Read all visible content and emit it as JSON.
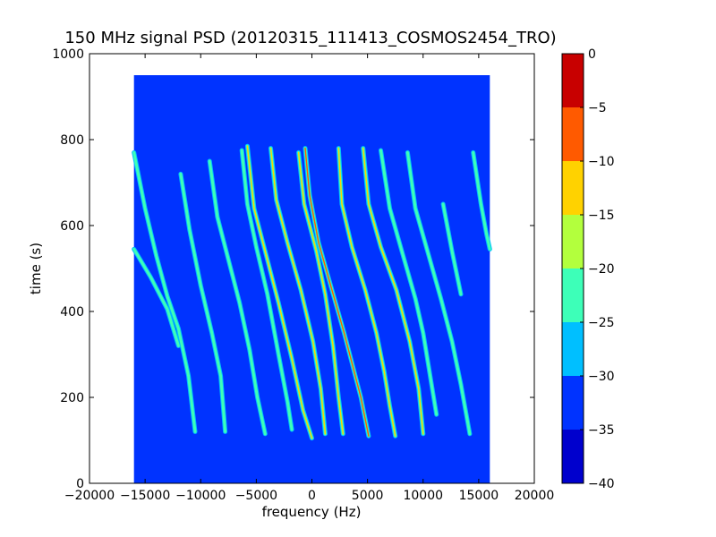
{
  "chart_data": {
    "type": "heatmap",
    "title": "150 MHz signal PSD (20120315_111413_COSMOS2454_TRO)",
    "xlabel": "frequency (Hz)",
    "ylabel": "time (s)",
    "xlim": [
      -20000,
      20000
    ],
    "ylim": [
      0,
      1000
    ],
    "x_ticks": [
      -20000,
      -15000,
      -10000,
      -5000,
      0,
      5000,
      10000,
      15000,
      20000
    ],
    "y_ticks": [
      0,
      200,
      400,
      600,
      800,
      1000
    ],
    "data_extent": {
      "x": [
        -16000,
        16000
      ],
      "y": [
        0,
        950
      ]
    },
    "colorbar": {
      "levels": [
        -40,
        -35,
        -30,
        -25,
        -20,
        -15,
        -10,
        -5,
        0
      ],
      "tick_labels": [
        "−40",
        "−35",
        "−30",
        "−25",
        "−20",
        "−15",
        "−10",
        "−5",
        "0"
      ],
      "colors": [
        "#0000cd",
        "#0033ff",
        "#00bfff",
        "#3dffb8",
        "#b3ff3d",
        "#ffd200",
        "#ff5a00",
        "#c80000"
      ]
    },
    "background_level_db": -32,
    "traces": [
      {
        "peak_db": -22,
        "points": [
          [
            -16000,
            545
          ],
          [
            -14500,
            480
          ],
          [
            -13000,
            405
          ],
          [
            -12000,
            320
          ]
        ]
      },
      {
        "peak_db": -22,
        "points": [
          [
            -16000,
            770
          ],
          [
            -15000,
            640
          ],
          [
            -14000,
            530
          ],
          [
            -13000,
            435
          ],
          [
            -12000,
            360
          ],
          [
            -11100,
            250
          ],
          [
            -10500,
            120
          ]
        ]
      },
      {
        "peak_db": -22,
        "points": [
          [
            -11800,
            720
          ],
          [
            -11000,
            590
          ],
          [
            -10000,
            460
          ],
          [
            -9000,
            350
          ],
          [
            -8200,
            250
          ],
          [
            -7800,
            120
          ]
        ]
      },
      {
        "peak_db": -22,
        "points": [
          [
            -9200,
            750
          ],
          [
            -8500,
            620
          ],
          [
            -7500,
            520
          ],
          [
            -6500,
            420
          ],
          [
            -5600,
            310
          ],
          [
            -4900,
            200
          ],
          [
            -4200,
            115
          ]
        ]
      },
      {
        "peak_db": -22,
        "points": [
          [
            -6300,
            775
          ],
          [
            -5800,
            650
          ],
          [
            -5000,
            550
          ],
          [
            -4000,
            440
          ],
          [
            -3000,
            300
          ],
          [
            -2200,
            190
          ],
          [
            -1800,
            125
          ]
        ]
      },
      {
        "peak_db": -13,
        "points": [
          [
            -5800,
            785
          ],
          [
            -5200,
            640
          ],
          [
            -4200,
            540
          ],
          [
            -3000,
            420
          ],
          [
            -1800,
            290
          ],
          [
            -800,
            170
          ],
          [
            0,
            105
          ]
        ]
      },
      {
        "peak_db": -12,
        "points": [
          [
            -3700,
            780
          ],
          [
            -3200,
            660
          ],
          [
            -2200,
            560
          ],
          [
            -1000,
            450
          ],
          [
            100,
            330
          ],
          [
            800,
            220
          ],
          [
            1200,
            115
          ]
        ]
      },
      {
        "peak_db": -8,
        "points": [
          [
            -600,
            780
          ],
          [
            -200,
            670
          ],
          [
            600,
            560
          ],
          [
            1800,
            450
          ],
          [
            2900,
            350
          ],
          [
            3700,
            270
          ],
          [
            4400,
            200
          ],
          [
            5100,
            110
          ]
        ]
      },
      {
        "peak_db": -12,
        "points": [
          [
            -1200,
            770
          ],
          [
            -700,
            650
          ],
          [
            400,
            540
          ],
          [
            1200,
            440
          ],
          [
            1900,
            320
          ],
          [
            2400,
            200
          ],
          [
            2800,
            115
          ]
        ]
      },
      {
        "peak_db": -12,
        "points": [
          [
            2400,
            780
          ],
          [
            2700,
            650
          ],
          [
            3600,
            550
          ],
          [
            4800,
            450
          ],
          [
            5800,
            350
          ],
          [
            6500,
            260
          ],
          [
            7000,
            180
          ],
          [
            7500,
            110
          ]
        ]
      },
      {
        "peak_db": -13,
        "points": [
          [
            4600,
            780
          ],
          [
            5100,
            650
          ],
          [
            6200,
            550
          ],
          [
            7600,
            450
          ],
          [
            8800,
            330
          ],
          [
            9600,
            220
          ],
          [
            10000,
            115
          ]
        ]
      },
      {
        "peak_db": -20,
        "points": [
          [
            6200,
            775
          ],
          [
            7000,
            640
          ],
          [
            8200,
            530
          ],
          [
            9300,
            430
          ],
          [
            10000,
            350
          ],
          [
            10700,
            240
          ],
          [
            11200,
            160
          ]
        ]
      },
      {
        "peak_db": -22,
        "points": [
          [
            8600,
            770
          ],
          [
            9300,
            640
          ],
          [
            10400,
            540
          ],
          [
            11600,
            430
          ],
          [
            12600,
            330
          ],
          [
            13400,
            230
          ],
          [
            14200,
            115
          ]
        ]
      },
      {
        "peak_db": -22,
        "points": [
          [
            14500,
            770
          ],
          [
            15200,
            650
          ],
          [
            15700,
            580
          ],
          [
            16000,
            545
          ]
        ]
      },
      {
        "peak_db": -22,
        "points": [
          [
            11800,
            650
          ],
          [
            12600,
            540
          ],
          [
            13400,
            440
          ]
        ]
      }
    ]
  }
}
